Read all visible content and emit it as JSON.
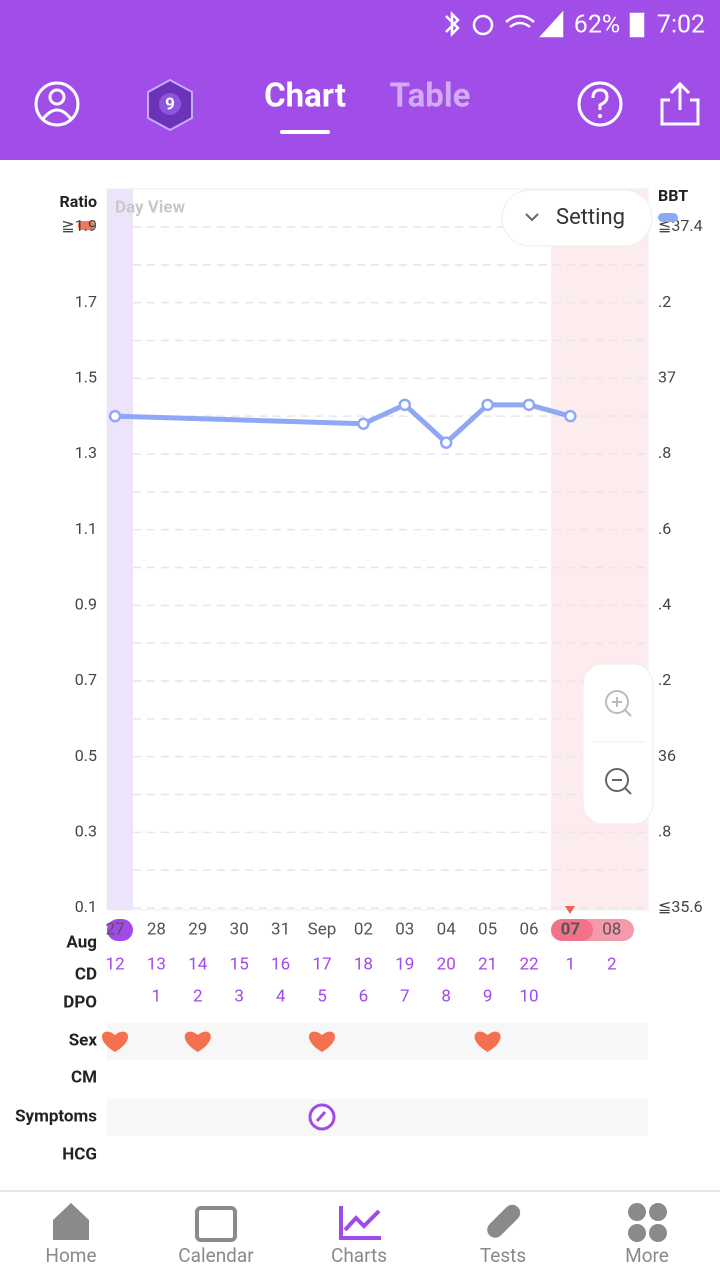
{
  "status_bar": {
    "battery": "62%",
    "time": "7:02"
  },
  "header": {
    "tabs": [
      "Chart",
      "Table"
    ],
    "badge": "9"
  },
  "chart_data": {
    "type": "line",
    "y_label": "Ratio",
    "view_label": "Day View",
    "setting_label": "Setting",
    "ratio_color": "#f0775a",
    "categories": [
      "27",
      "28",
      "29",
      "30",
      "31",
      "Sep",
      "02",
      "03",
      "04",
      "05",
      "06",
      "07",
      "08"
    ],
    "ylim": [
      0.1,
      1.9
    ],
    "yticks": [
      {
        "value": 1.9,
        "label": "≧1.9"
      },
      1.7,
      1.5,
      1.3,
      1.1,
      0.9,
      0.7,
      0.5,
      0.3,
      0.1
    ],
    "y2lim": [
      35.6,
      37.4
    ],
    "y2ticks": [
      {
        "value": 37.4,
        "label": "≦37.4"
      },
      {
        "value": 37.2,
        "label": ".2"
      },
      37,
      {
        "value": 36.8,
        "label": ".8"
      },
      {
        "value": 36.6,
        "label": ".6"
      },
      {
        "value": 36.4,
        "label": ".4"
      },
      {
        "value": 36.2,
        "label": ".2"
      },
      36,
      {
        "value": 35.8,
        "label": ".8"
      },
      {
        "value": 35.6,
        "label": "≦35.6"
      }
    ],
    "grid": true,
    "series": [
      {
        "name": "BBT",
        "color": "#8fa8f5",
        "axis": "y2",
        "x": [
          "27",
          "02",
          "03",
          "04",
          "05",
          "06",
          "07"
        ],
        "values": [
          36.9,
          36.88,
          36.93,
          36.83,
          36.93,
          36.93,
          36.9
        ]
      }
    ]
  },
  "rows": {
    "month": "Aug",
    "cd_label": "CD",
    "dpo_label": "DPO",
    "sex_label": "Sex",
    "cm_label": "CM",
    "symptoms_label": "Symptoms",
    "hcg_label": "HCG",
    "cd": [
      12,
      13,
      14,
      15,
      16,
      17,
      18,
      19,
      20,
      21,
      22,
      1,
      2
    ],
    "dpo": [
      null,
      1,
      2,
      3,
      4,
      5,
      6,
      7,
      8,
      9,
      10,
      null,
      null
    ],
    "sex_days": [
      "27",
      "29",
      "Sep",
      "05"
    ],
    "symptom_days": [
      "Sep"
    ]
  },
  "nav": [
    "Home",
    "Calendar",
    "Charts",
    "Tests",
    "More"
  ],
  "nav_active": "Charts"
}
